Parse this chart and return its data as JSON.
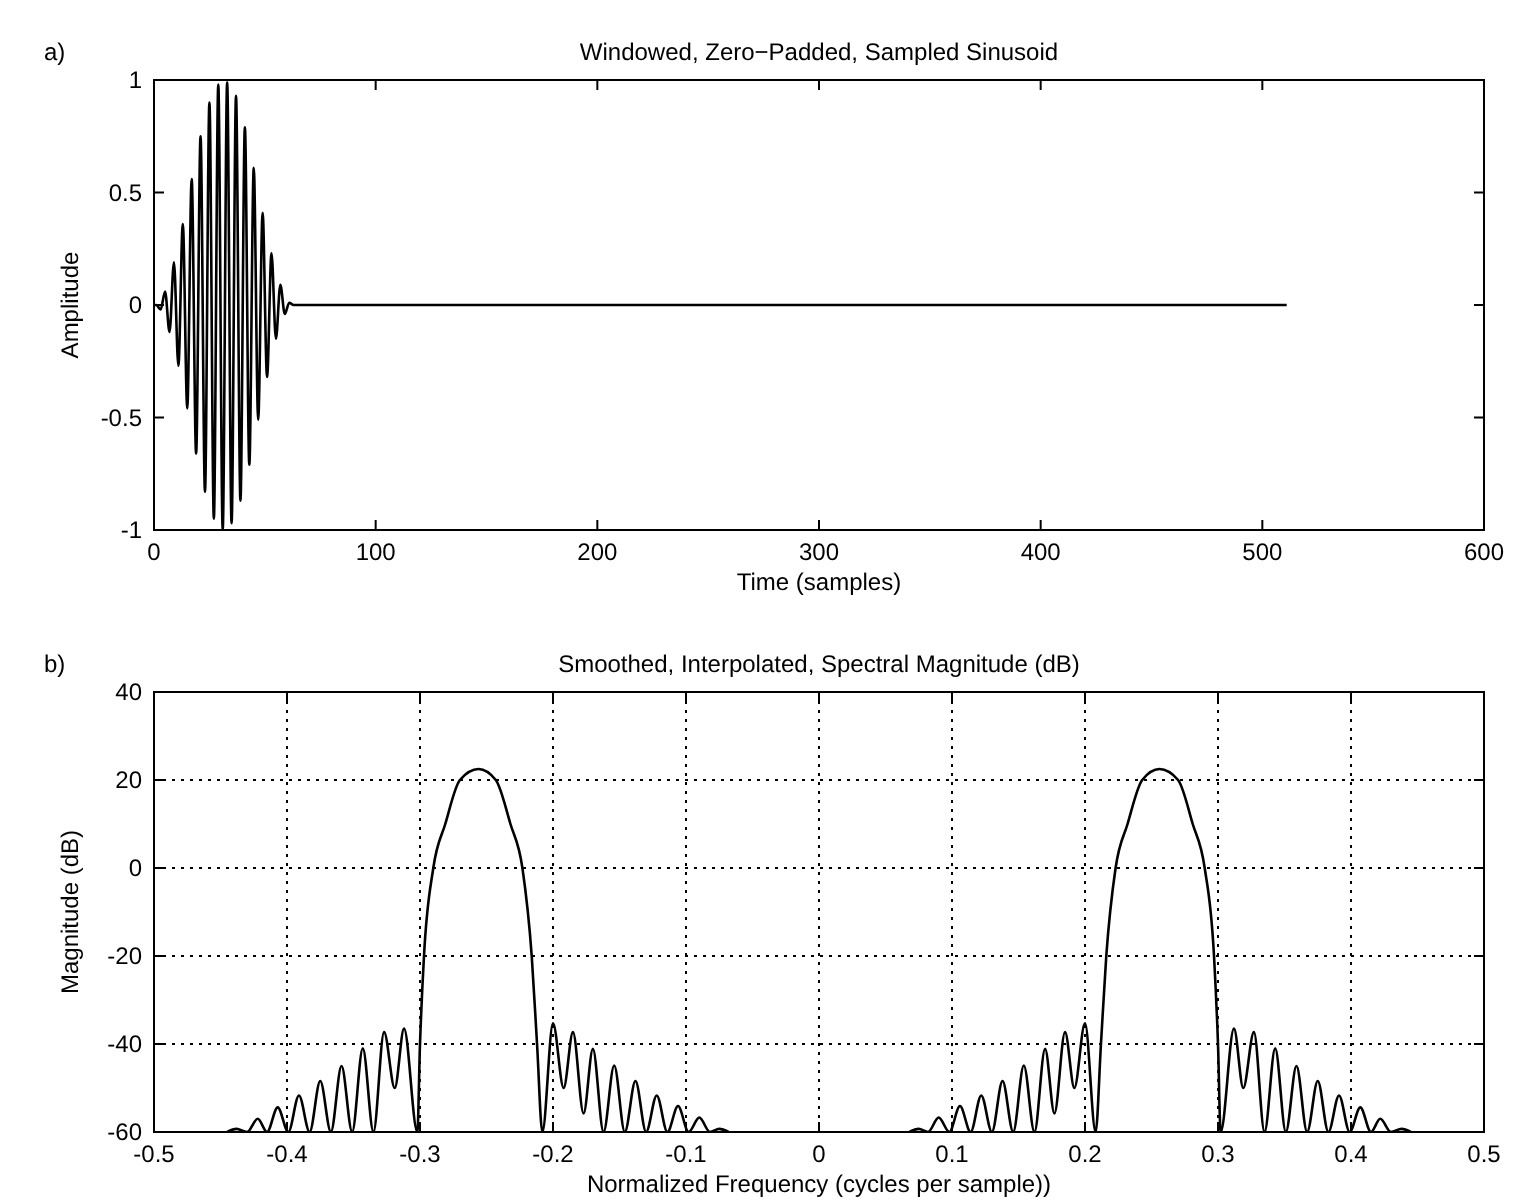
{
  "chart_data": [
    {
      "type": "line",
      "title": "Windowed, Zero−Padded, Sampled Sinusoid",
      "xlabel": "Time (samples)",
      "ylabel": "Amplitude",
      "annotations": [
        "a)"
      ],
      "color": "#000000",
      "grid": false,
      "x": [
        0,
        1,
        3,
        5,
        7,
        9,
        11,
        13,
        15,
        17,
        19,
        21,
        23,
        25,
        27,
        29,
        31,
        33,
        35,
        37,
        39,
        41,
        43,
        45,
        47,
        49,
        51,
        53,
        55,
        57,
        59,
        61,
        63,
        511
      ],
      "values": [
        0,
        0.0,
        -0.02,
        0.06,
        -0.12,
        0.19,
        -0.27,
        0.36,
        -0.46,
        0.56,
        -0.66,
        0.75,
        -0.83,
        0.9,
        -0.95,
        0.98,
        -1.0,
        0.99,
        -0.97,
        0.93,
        -0.87,
        0.79,
        -0.71,
        0.61,
        -0.51,
        0.41,
        -0.32,
        0.23,
        -0.15,
        0.09,
        -0.04,
        0.01,
        0,
        0
      ],
      "xlim": [
        0,
        600
      ],
      "ylim": [
        -1,
        1
      ],
      "xticks": [
        0,
        100,
        200,
        300,
        400,
        500,
        600
      ],
      "yticks": [
        -1,
        -0.5,
        0,
        0.5,
        1
      ]
    },
    {
      "type": "line",
      "title": "Smoothed, Interpolated, Spectral Magnitude (dB)",
      "xlabel": "Normalized Frequency (cycles per sample))",
      "ylabel": "Magnitude (dB)",
      "annotations": [
        "b)"
      ],
      "color": "#000000",
      "grid": true,
      "x": [
        -0.445,
        -0.438,
        -0.43,
        -0.422,
        -0.415,
        -0.407,
        -0.399,
        -0.391,
        -0.383,
        -0.375,
        -0.367,
        -0.359,
        -0.351,
        -0.343,
        -0.335,
        -0.327,
        -0.319,
        -0.312,
        -0.302,
        -0.3,
        -0.297,
        -0.29,
        -0.281,
        -0.27,
        -0.256,
        -0.243,
        -0.232,
        -0.223,
        -0.216,
        -0.212,
        -0.208,
        -0.2,
        -0.192,
        -0.185,
        -0.177,
        -0.17,
        -0.162,
        -0.154,
        -0.146,
        -0.138,
        -0.13,
        -0.122,
        -0.114,
        -0.106,
        -0.098,
        -0.09,
        -0.082,
        -0.075,
        -0.068,
        0,
        0.068,
        0.075,
        0.082,
        0.09,
        0.098,
        0.106,
        0.114,
        0.122,
        0.13,
        0.138,
        0.146,
        0.154,
        0.162,
        0.17,
        0.177,
        0.185,
        0.192,
        0.2,
        0.208,
        0.212,
        0.216,
        0.223,
        0.232,
        0.243,
        0.256,
        0.27,
        0.281,
        0.29,
        0.297,
        0.3,
        0.302,
        0.312,
        0.319,
        0.327,
        0.335,
        0.343,
        0.351,
        0.359,
        0.367,
        0.375,
        0.383,
        0.391,
        0.399,
        0.407,
        0.415,
        0.422,
        0.43,
        0.438,
        0.445
      ],
      "values": [
        -60,
        -59.3,
        -60,
        -57,
        -60,
        -54.4,
        -60,
        -51.7,
        -60,
        -48.4,
        -60,
        -45,
        -60,
        -41,
        -60,
        -37.3,
        -50,
        -36.5,
        -60,
        -40,
        -20,
        0,
        10,
        20,
        22.5,
        20,
        10,
        0,
        -20,
        -40,
        -60,
        -35.3,
        -50,
        -37.3,
        -55.8,
        -41.1,
        -60,
        -44.9,
        -60,
        -48.4,
        -60,
        -51.7,
        -60,
        -54.1,
        -60,
        -56.7,
        -60,
        -59.3,
        -60,
        null,
        -60,
        -59.3,
        -60,
        -56.7,
        -60,
        -54.1,
        -60,
        -51.7,
        -60,
        -48.4,
        -60,
        -44.9,
        -60,
        -41.1,
        -55.8,
        -37.3,
        -50,
        -35.3,
        -60,
        -40,
        -20,
        0,
        10,
        20,
        22.5,
        20,
        10,
        0,
        -20,
        -40,
        -60,
        -36.5,
        -50,
        -37.3,
        -60,
        -41,
        -60,
        -45,
        -60,
        -48.4,
        -60,
        -51.7,
        -60,
        -54.4,
        -60,
        -57,
        -60,
        -59.3,
        -60
      ],
      "xlim": [
        -0.5,
        0.5
      ],
      "ylim": [
        -60,
        40
      ],
      "xticks": [
        -0.5,
        -0.4,
        -0.3,
        -0.2,
        -0.1,
        0,
        0.1,
        0.2,
        0.3,
        0.4,
        0.5
      ],
      "yticks": [
        -60,
        -40,
        -20,
        0,
        20,
        40
      ]
    }
  ]
}
